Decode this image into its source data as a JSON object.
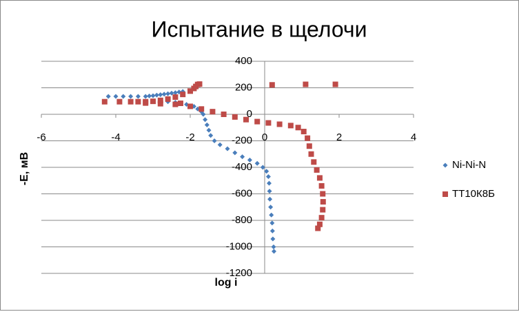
{
  "chart_data": {
    "type": "scatter",
    "title": "Испытание в щелочи",
    "xlabel": "log i",
    "ylabel": "-E, мВ",
    "xlim": [
      -6,
      4
    ],
    "xticks": [
      -6,
      -4,
      -2,
      0,
      2,
      4
    ],
    "ylim": [
      -1200,
      400
    ],
    "yticks": [
      -1200,
      -1000,
      -800,
      -600,
      -400,
      -200,
      0,
      200,
      400
    ],
    "grid": true,
    "legend": "right",
    "series": [
      {
        "name": "Ni-Ni-N",
        "color": "#4a7ebb",
        "marker": "diamond",
        "x": [
          -4.2,
          -4.0,
          -3.8,
          -3.6,
          -3.4,
          -3.2,
          -3.1,
          -3.0,
          -2.9,
          -2.8,
          -2.7,
          -2.6,
          -2.5,
          -2.4,
          -2.3,
          -2.2,
          -3.0,
          -2.8,
          -2.6,
          -2.4,
          -2.3,
          -2.1,
          -1.9,
          -1.8,
          -1.7,
          -1.65,
          -1.6,
          -1.55,
          -1.5,
          -1.45,
          -1.35,
          -1.2,
          -1.0,
          -0.8,
          -0.6,
          -0.4,
          -0.2,
          -0.05,
          0.05,
          0.1,
          0.12,
          0.13,
          0.14,
          0.16,
          0.18,
          0.2,
          0.21,
          0.22,
          0.24,
          0.25
        ],
        "values": [
          135,
          135,
          135,
          135,
          135,
          135,
          138,
          140,
          145,
          148,
          152,
          155,
          160,
          163,
          168,
          172,
          100,
          100,
          95,
          90,
          85,
          75,
          60,
          40,
          20,
          0,
          -40,
          -80,
          -120,
          -160,
          -200,
          -230,
          -260,
          -290,
          -320,
          -345,
          -370,
          -400,
          -430,
          -470,
          -520,
          -580,
          -640,
          -700,
          -760,
          -820,
          -880,
          -940,
          -1000,
          -1034
        ]
      },
      {
        "name": "ТТ10К8Б",
        "color": "#be4b48",
        "marker": "square",
        "x": [
          -4.3,
          -3.9,
          -3.6,
          -3.4,
          -3.2,
          -3.0,
          -2.8,
          -2.6,
          -2.4,
          -2.2,
          -2.0,
          -1.9,
          -1.85,
          -1.8,
          -1.75,
          0.2,
          1.1,
          1.9,
          -3.2,
          -2.8,
          -2.4,
          -2.26,
          -2.0,
          -1.7,
          -1.4,
          -1.1,
          -0.8,
          -0.5,
          -0.2,
          0.1,
          0.4,
          0.7,
          0.9,
          1.05,
          1.15,
          1.2,
          1.25,
          1.32,
          1.4,
          1.48,
          1.53,
          1.56,
          1.57,
          1.56,
          1.53,
          1.48,
          1.43
        ],
        "values": [
          95,
          95,
          95,
          95,
          95,
          98,
          105,
          115,
          130,
          150,
          175,
          195,
          210,
          225,
          228,
          222,
          226,
          226,
          85,
          80,
          75,
          83,
          60,
          40,
          20,
          0,
          -20,
          -40,
          -55,
          -65,
          -75,
          -85,
          -100,
          -130,
          -180,
          -240,
          -300,
          -360,
          -420,
          -480,
          -540,
          -600,
          -660,
          -720,
          -780,
          -830,
          -860
        ]
      }
    ]
  }
}
